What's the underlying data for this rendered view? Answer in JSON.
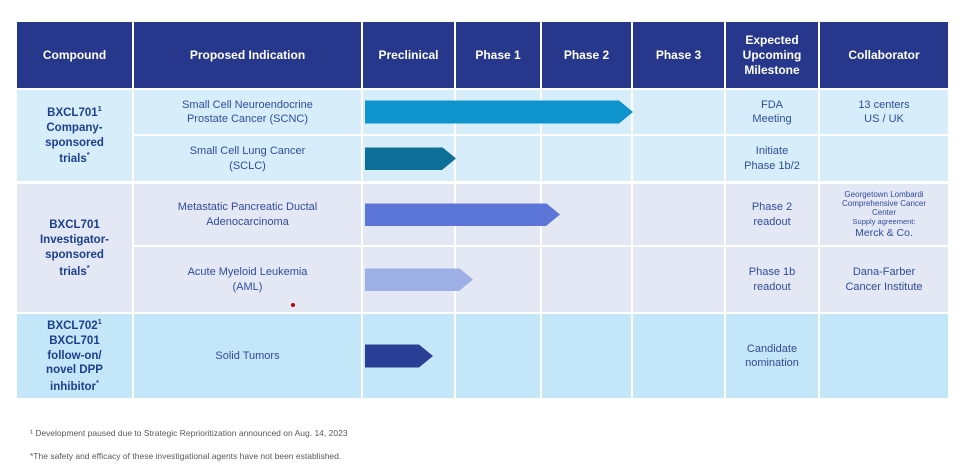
{
  "colors": {
    "header_bg": "#27388C",
    "header_text": "#FFFFFF",
    "group1_bg": "#D7EEFA",
    "group2_bg": "#E4E8F5",
    "group3_bg": "#C3E6F8",
    "body_text": "#2E4C9C",
    "compound_text": "#1C3E8F",
    "footnote_text": "#595959",
    "red_mark": "#C00000"
  },
  "header": {
    "columns": [
      "Compound",
      "Proposed Indication",
      "Preclinical",
      "Phase 1",
      "Phase 2",
      "Phase 3",
      "Expected\nUpcoming\nMilestone",
      "Collaborator"
    ]
  },
  "groups": [
    {
      "name": "BXCL701",
      "name_sup": "1",
      "desc": "Company-\nsponsored\ntrials",
      "desc_sup": "*"
    },
    {
      "name": "BXCL701",
      "name_sup": "",
      "desc": "Investigator-\nsponsored\ntrials",
      "desc_sup": "*"
    },
    {
      "name": "BXCL702",
      "name_sup": "1",
      "desc": "BXCL701\nfollow-on/\nnovel DPP\ninhibitor",
      "desc_sup": "*"
    }
  ],
  "rows": [
    {
      "indication": "Small Cell Neuroendocrine\nProstate Cancer (SCNC)",
      "milestone": "FDA\nMeeting",
      "collaborator": "13 centers\nUS / UK"
    },
    {
      "indication": "Small Cell Lung Cancer\n(SCLC)",
      "milestone": "Initiate\nPhase 1b/2",
      "collaborator": ""
    },
    {
      "indication": "Metastatic Pancreatic Ductal\nAdenocarcinoma",
      "milestone": "Phase 2\nreadout",
      "collaborator": "Georgetown Lombardi\nComprehensive Cancer\nCenter",
      "collab_sub_label": "Supply agreement:",
      "collab_sub_name": "Merck & Co."
    },
    {
      "indication": "Acute Myeloid Leukemia\n(AML)",
      "milestone": "Phase 1b\nreadout",
      "collaborator": "Dana-Farber\nCancer Institute"
    },
    {
      "indication": "Solid Tumors",
      "milestone": "Candidate\nnomination",
      "collaborator": ""
    }
  ],
  "chart_data": {
    "type": "bar",
    "orientation": "horizontal",
    "title": "Clinical development pipeline phase progress",
    "categories": [
      "Small Cell Neuroendocrine Prostate Cancer (SCNC)",
      "Small Cell Lung Cancer (SCLC)",
      "Metastatic Pancreatic Ductal Adenocarcinoma",
      "Acute Myeloid Leukemia (AML)",
      "Solid Tumors"
    ],
    "values": [
      3.0,
      1.0,
      2.2,
      1.2,
      0.75
    ],
    "value_units": "phase reached: 0=start Preclinical, 1=Preclinical done, 2=Phase 1 done, 3=Phase 2 done, 4=Phase 3 done",
    "bar_colors": [
      "#0E93CC",
      "#0D6E97",
      "#5B76D7",
      "#9DAFE5",
      "#2A3E96"
    ],
    "phase_columns": [
      "Preclinical",
      "Phase 1",
      "Phase 2",
      "Phase 3"
    ],
    "xlim": [
      0,
      4
    ],
    "grid": true,
    "legend": false
  },
  "footnotes": [
    "¹ Development paused due to Strategic Reprioritization announced on Aug. 14, 2023",
    "*The safety and efficacy of these investigational agents have not been established."
  ]
}
